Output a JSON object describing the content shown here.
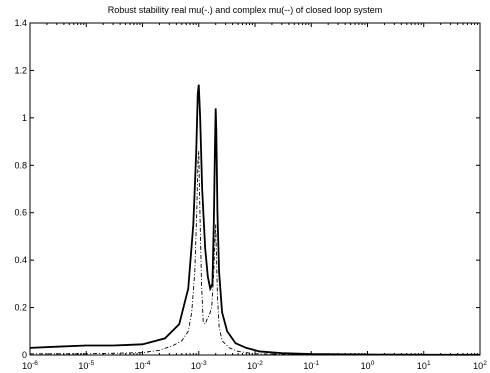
{
  "chart_data": {
    "type": "line",
    "title": "Robust stability real mu(-.) and complex mu(--) of closed loop system",
    "xlabel": "",
    "ylabel": "",
    "xscale": "log",
    "xlim": [
      1e-06,
      100
    ],
    "ylim": [
      0,
      1.4
    ],
    "grid": false,
    "x_ticks": [
      {
        "value": 1e-06,
        "base": "10",
        "exp": "-6"
      },
      {
        "value": 1e-05,
        "base": "10",
        "exp": "-5"
      },
      {
        "value": 0.0001,
        "base": "10",
        "exp": "-4"
      },
      {
        "value": 0.001,
        "base": "10",
        "exp": "-3"
      },
      {
        "value": 0.01,
        "base": "10",
        "exp": "-2"
      },
      {
        "value": 0.1,
        "base": "10",
        "exp": "-1"
      },
      {
        "value": 1,
        "base": "10",
        "exp": "0"
      },
      {
        "value": 10,
        "base": "10",
        "exp": "1"
      },
      {
        "value": 100,
        "base": "10",
        "exp": "2"
      }
    ],
    "y_ticks": [
      {
        "value": 0,
        "label": "0"
      },
      {
        "value": 0.2,
        "label": "0.2"
      },
      {
        "value": 0.4,
        "label": "0.4"
      },
      {
        "value": 0.6,
        "label": "0.6"
      },
      {
        "value": 0.8,
        "label": "0.8"
      },
      {
        "value": 1.0,
        "label": "1"
      },
      {
        "value": 1.2,
        "label": "1.2"
      },
      {
        "value": 1.4,
        "label": "1.4"
      }
    ],
    "series": [
      {
        "style": "solid",
        "x": [
          1e-06,
          3e-06,
          1e-05,
          3e-05,
          0.0001,
          0.00025,
          0.00045,
          0.00065,
          0.0008,
          0.0009,
          0.00096,
          0.001,
          0.00106,
          0.00115,
          0.0013,
          0.00145,
          0.0016,
          0.00175,
          0.00185,
          0.00195,
          0.002,
          0.00205,
          0.00215,
          0.0023,
          0.0026,
          0.0032,
          0.0045,
          0.007,
          0.012,
          0.03,
          0.1,
          1,
          10,
          100
        ],
        "y": [
          0.03,
          0.035,
          0.04,
          0.04,
          0.045,
          0.07,
          0.13,
          0.28,
          0.55,
          0.85,
          1.1,
          1.14,
          1.0,
          0.7,
          0.45,
          0.33,
          0.28,
          0.3,
          0.55,
          0.9,
          1.04,
          0.95,
          0.6,
          0.35,
          0.18,
          0.1,
          0.05,
          0.03,
          0.015,
          0.008,
          0.004,
          0.002,
          0.001,
          0.001
        ]
      },
      {
        "style": "dashdot",
        "x": [
          1e-06,
          1e-05,
          0.0001,
          0.0002,
          0.00035,
          0.0005,
          0.00065,
          0.00075,
          0.00085,
          0.00092,
          0.00097,
          0.001,
          0.00105,
          0.00112,
          0.0012,
          0.0013,
          0.0014,
          0.00155,
          0.0017,
          0.00185,
          0.00195,
          0.002,
          0.00205,
          0.00215,
          0.0023,
          0.0026,
          0.0035,
          0.005,
          0.01,
          0.1,
          1,
          100
        ],
        "y": [
          0.005,
          0.005,
          0.01,
          0.02,
          0.04,
          0.06,
          0.1,
          0.18,
          0.35,
          0.6,
          0.82,
          0.86,
          0.6,
          0.3,
          0.14,
          0.13,
          0.15,
          0.17,
          0.2,
          0.35,
          0.5,
          0.55,
          0.45,
          0.25,
          0.12,
          0.06,
          0.03,
          0.015,
          0.005,
          0.002,
          0.001,
          0.001
        ]
      }
    ]
  }
}
